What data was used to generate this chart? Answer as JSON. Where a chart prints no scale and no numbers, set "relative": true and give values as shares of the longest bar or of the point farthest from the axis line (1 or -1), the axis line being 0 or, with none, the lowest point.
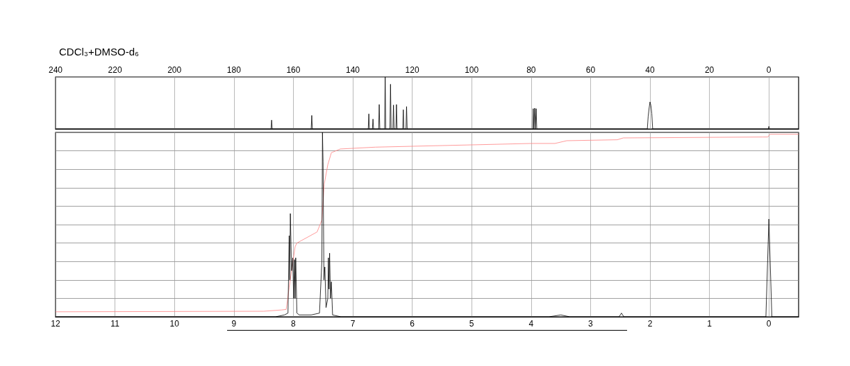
{
  "chart_data": [
    {
      "type": "line",
      "title": "CDCl₃+DMSO-d₆",
      "relative": true,
      "xlim": [
        240,
        -10
      ],
      "xticks": [
        240,
        220,
        200,
        180,
        160,
        140,
        120,
        100,
        80,
        60,
        40,
        20,
        0
      ],
      "grid": "x",
      "marker": "none",
      "line_style": "solid",
      "series": [
        {
          "color": "#000000",
          "x": [
            240,
            167.5,
            167.3,
            167.1,
            154.0,
            153.8,
            153.6,
            134.8,
            134.6,
            134.4,
            133.4,
            133.2,
            133.0,
            131.3,
            131.1,
            130.9,
            129.3,
            129.1,
            128.9,
            127.5,
            127.3,
            127.1,
            126.5,
            126.3,
            126.1,
            125.5,
            125.3,
            125.1,
            123.2,
            123.0,
            122.8,
            122.1,
            121.9,
            121.7,
            79.5,
            79.3,
            79.1,
            79.0,
            78.8,
            78.6,
            78.5,
            78.3,
            78.1,
            40.9,
            40.6,
            40.3,
            40.0,
            39.7,
            39.4,
            39.1,
            0.2,
            0,
            -0.2,
            -10
          ],
          "values": [
            0,
            0,
            0.17,
            0,
            0,
            0.26,
            0,
            0,
            0.29,
            0,
            0,
            0.19,
            0,
            0,
            0.47,
            0,
            0,
            1,
            0,
            0,
            0.86,
            0,
            0,
            0.46,
            0,
            0,
            0.47,
            0,
            0,
            0.37,
            0,
            0,
            0.43,
            0,
            0,
            0.39,
            0,
            0,
            0.4,
            0,
            0,
            0.39,
            0,
            0,
            0.25,
            0.4,
            0.52,
            0.45,
            0.3,
            0,
            0,
            0.05,
            0,
            0
          ]
        }
      ]
    },
    {
      "type": "line",
      "relative": true,
      "xlim": [
        12,
        -0.5
      ],
      "xticks": [
        12,
        11,
        10,
        9,
        8,
        7,
        6,
        5,
        4,
        3,
        2,
        1,
        0
      ],
      "grid": true,
      "marker": "none",
      "line_style": "solid",
      "series": [
        {
          "color": "#ff8080",
          "x": [
            12,
            8.5,
            8.2,
            8.12,
            8.07,
            7.97,
            7.94,
            7.6,
            7.52,
            7.48,
            7.42,
            7.36,
            7.21,
            6.62,
            4,
            3.6,
            3.4,
            2.55,
            2.45,
            0.1,
            0.02,
            -0.02,
            -0.5
          ],
          "values": [
            0.027,
            0.03,
            0.037,
            0.04,
            0.16,
            0.38,
            0.4,
            0.46,
            0.525,
            0.72,
            0.825,
            0.89,
            0.91,
            0.92,
            0.94,
            0.94,
            0.955,
            0.96,
            0.97,
            0.975,
            0.975,
            0.99,
            0.99
          ]
        },
        {
          "color": "#000000",
          "x": [
            12,
            8.3,
            8.15,
            8.09,
            8.07,
            8.06,
            8.05,
            8.03,
            8.01,
            7.995,
            7.98,
            7.97,
            7.96,
            7.94,
            7.9,
            7.7,
            7.56,
            7.52,
            7.51,
            7.5,
            7.485,
            7.47,
            7.45,
            7.42,
            7.41,
            7.4,
            7.39,
            7.375,
            7.36,
            7.34,
            7.2,
            3.7,
            3.5,
            3.35,
            2.52,
            2.48,
            2.44,
            0.05,
            0,
            -0.05,
            -0.5
          ],
          "values": [
            0,
            0,
            0.01,
            0.02,
            0.44,
            0.2,
            0.56,
            0.25,
            0.32,
            0.1,
            0.31,
            0.1,
            0.32,
            0.02,
            0.01,
            0.01,
            0.02,
            0.3,
            1,
            0.84,
            0.2,
            0.27,
            0.05,
            0.1,
            0.32,
            0.15,
            0.345,
            0.1,
            0.19,
            0.01,
            0,
            0,
            0.01,
            0,
            0,
            0.02,
            0,
            0,
            0.53,
            0,
            0
          ]
        }
      ]
    }
  ]
}
